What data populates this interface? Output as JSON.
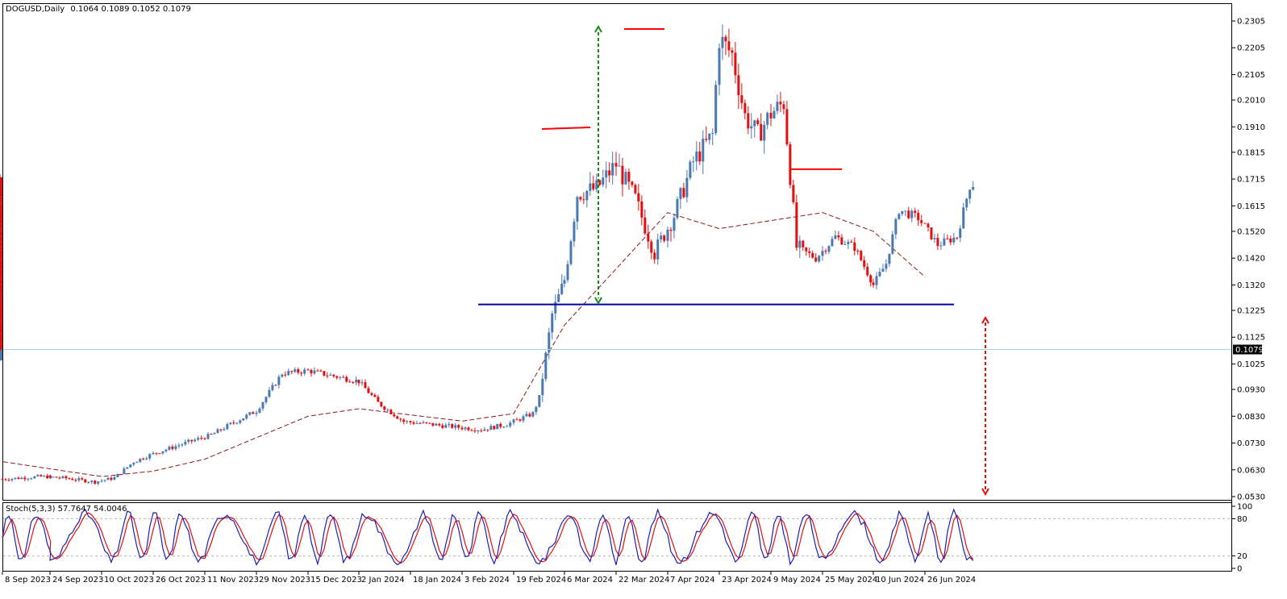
{
  "header": {
    "symbol": "DOGUSD,Daily",
    "ohlc": "0.1064 0.1089 0.1052 0.1079"
  },
  "stoch_header": "Stoch(5,3,3) 57.7647 54.0046",
  "price_axis": [
    "0.2305",
    "0.2205",
    "0.2105",
    "0.2010",
    "0.1910",
    "0.1815",
    "0.1715",
    "0.1615",
    "0.1520",
    "0.1420",
    "0.1320",
    "0.1225",
    "0.1125",
    "0.1025",
    "0.0930",
    "0.0830",
    "0.0730",
    "0.0630",
    "0.0530"
  ],
  "current_price_label": "0.1079",
  "stoch_axis": [
    "100",
    "80",
    "20",
    "0"
  ],
  "date_axis": [
    "8 Sep 2023",
    "24 Sep 2023",
    "10 Oct 2023",
    "26 Oct 2023",
    "11 Nov 2023",
    "29 Nov 2023",
    "15 Dec 2023",
    "2 Jan 2024",
    "18 Jan 2024",
    "3 Feb 2024",
    "19 Feb 2024",
    "6 Mar 2024",
    "22 Mar 2024",
    "7 Apr 2024",
    "23 Apr 2024",
    "9 May 2024",
    "25 May 2024",
    "10 Jun 2024",
    "26 Jun 2024"
  ],
  "colors": {
    "up": "#4a78b0",
    "down": "#e01010",
    "ma": "#8b1a1a",
    "support": "#0000a0",
    "stoch_main": "#1f1fb0",
    "stoch_signal": "#e01010",
    "level_line": "#ff0000",
    "target_up": "#178a17",
    "target_down": "#e01010",
    "current_line": "#a8d4e6"
  },
  "chart_data": {
    "type": "candlestick",
    "symbol": "DOGUSD",
    "timeframe": "Daily",
    "ylim": [
      0.053,
      0.2305
    ],
    "current_price": 0.1079,
    "moving_average_points": [
      {
        "date": "8 Sep 2023",
        "value": 0.066
      },
      {
        "date": "10 Oct 2023",
        "value": 0.0605
      },
      {
        "date": "26 Oct 2023",
        "value": 0.0625
      },
      {
        "date": "11 Nov 2023",
        "value": 0.067
      },
      {
        "date": "29 Nov 2023",
        "value": 0.075
      },
      {
        "date": "15 Dec 2023",
        "value": 0.083
      },
      {
        "date": "2 Jan 2024",
        "value": 0.0858
      },
      {
        "date": "18 Jan 2024",
        "value": 0.0835
      },
      {
        "date": "3 Feb 2024",
        "value": 0.0812
      },
      {
        "date": "19 Feb 2024",
        "value": 0.084
      },
      {
        "date": "6 Mar 2024",
        "value": 0.117
      },
      {
        "date": "22 Mar 2024",
        "value": 0.138
      },
      {
        "date": "7 Apr 2024",
        "value": 0.159
      },
      {
        "date": "23 Apr 2024",
        "value": 0.153
      },
      {
        "date": "9 May 2024",
        "value": 0.156
      },
      {
        "date": "25 May 2024",
        "value": 0.159
      },
      {
        "date": "10 Jun 2024",
        "value": 0.152
      },
      {
        "date": "26 Jun 2024",
        "value": 0.135
      }
    ],
    "support_level": 0.1247,
    "resistance_marks": [
      {
        "date": "6 Mar 2024",
        "value": 0.1905
      },
      {
        "date": "22 Mar 2024",
        "value": 0.2275
      },
      {
        "date": "25 May 2024",
        "value": 0.1752
      }
    ],
    "stochastic": {
      "k": 57.7647,
      "d": 54.0046,
      "levels": [
        80,
        20
      ]
    }
  }
}
